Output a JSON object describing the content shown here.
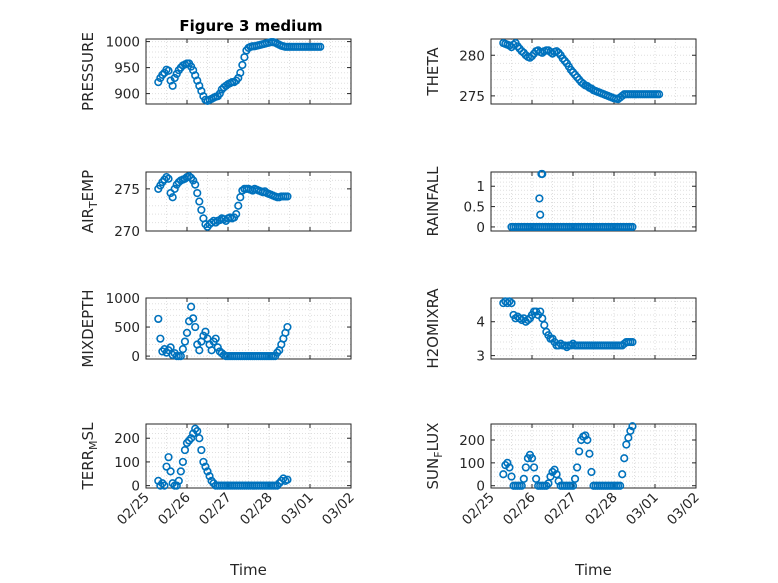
{
  "figure_title": "Figure 3 medium",
  "x_axis_label": "Time",
  "marker_color": "#0072bd",
  "date_ticks": [
    "02/25",
    "02/26",
    "02/27",
    "02/28",
    "03/01",
    "03/02"
  ],
  "chart_data": [
    {
      "type": "scatter",
      "title": "Figure 3 medium",
      "ylabel": "PRESSURE",
      "xlabel": "",
      "ylim": [
        880,
        1005
      ],
      "yticks": [
        900,
        950,
        1000
      ],
      "grid": true,
      "x": [
        0.3,
        0.35,
        0.4,
        0.45,
        0.5,
        0.55,
        0.6,
        0.65,
        0.7,
        0.75,
        0.8,
        0.85,
        0.9,
        0.95,
        1.0,
        1.05,
        1.1,
        1.15,
        1.2,
        1.25,
        1.3,
        1.35,
        1.4,
        1.45,
        1.5,
        1.55,
        1.6,
        1.65,
        1.7,
        1.75,
        1.8,
        1.85,
        1.9,
        1.95,
        2.0,
        2.05,
        2.1,
        2.15,
        2.2,
        2.25,
        2.3,
        2.35,
        2.4,
        2.45,
        2.5,
        2.55,
        2.6,
        2.65,
        2.7,
        2.75,
        2.8,
        2.85,
        2.9,
        2.95,
        3.0,
        3.05,
        3.1,
        3.15,
        3.2,
        3.25,
        3.3,
        3.35,
        3.4,
        3.45,
        3.5,
        3.55,
        3.6,
        3.65,
        3.7,
        3.75,
        3.8,
        3.85,
        3.9,
        3.95,
        4.0,
        4.05,
        4.1,
        4.15,
        4.2,
        4.25
      ],
      "y": [
        922,
        930,
        936,
        940,
        946,
        944,
        925,
        915,
        930,
        938,
        945,
        950,
        954,
        956,
        958,
        958,
        952,
        945,
        935,
        925,
        915,
        905,
        895,
        888,
        886,
        888,
        890,
        892,
        894,
        895,
        900,
        908,
        912,
        915,
        918,
        920,
        922,
        922,
        925,
        930,
        940,
        955,
        970,
        983,
        988,
        990,
        991,
        991,
        992,
        993,
        994,
        995,
        996,
        997,
        998,
        999,
        999,
        998,
        996,
        994,
        992,
        991,
        990,
        990,
        990,
        990,
        990,
        990,
        990,
        990,
        990,
        990,
        990,
        990,
        990,
        990,
        990,
        990,
        990,
        990
      ]
    },
    {
      "type": "scatter",
      "title": "",
      "ylabel": "THETA",
      "xlabel": "",
      "ylim": [
        274,
        282
      ],
      "yticks": [
        275,
        280
      ],
      "grid": true,
      "x": [
        0.3,
        0.35,
        0.4,
        0.45,
        0.5,
        0.55,
        0.6,
        0.65,
        0.7,
        0.75,
        0.8,
        0.85,
        0.9,
        0.95,
        1.0,
        1.05,
        1.1,
        1.15,
        1.2,
        1.25,
        1.3,
        1.35,
        1.4,
        1.45,
        1.5,
        1.55,
        1.6,
        1.65,
        1.7,
        1.75,
        1.8,
        1.85,
        1.9,
        1.95,
        2.0,
        2.05,
        2.1,
        2.15,
        2.2,
        2.25,
        2.3,
        2.35,
        2.4,
        2.45,
        2.5,
        2.55,
        2.6,
        2.65,
        2.7,
        2.75,
        2.8,
        2.85,
        2.9,
        2.95,
        3.0,
        3.05,
        3.1,
        3.15,
        3.2,
        3.25,
        3.3,
        3.35,
        3.4,
        3.45,
        3.5,
        3.55,
        3.6,
        3.65,
        3.7,
        3.75,
        3.8,
        3.85,
        3.9,
        3.95,
        4.0,
        4.05,
        4.1
      ],
      "y": [
        281.5,
        281.4,
        281.3,
        281.2,
        281.0,
        281.3,
        281.5,
        281.1,
        280.8,
        280.5,
        280.3,
        280.0,
        279.8,
        279.7,
        279.9,
        280.2,
        280.5,
        280.6,
        280.4,
        280.3,
        280.5,
        280.6,
        280.6,
        280.4,
        280.2,
        280.4,
        280.5,
        280.3,
        280.0,
        279.6,
        279.3,
        279.0,
        278.6,
        278.2,
        277.9,
        277.6,
        277.3,
        277.0,
        276.7,
        276.5,
        276.3,
        276.2,
        276.0,
        275.9,
        275.7,
        275.6,
        275.5,
        275.4,
        275.3,
        275.2,
        275.1,
        275.0,
        274.9,
        274.8,
        274.7,
        274.65,
        274.6,
        274.8,
        275.0,
        275.2,
        275.2,
        275.2,
        275.2,
        275.2,
        275.2,
        275.2,
        275.2,
        275.2,
        275.2,
        275.2,
        275.2,
        275.2,
        275.2,
        275.2,
        275.2,
        275.2,
        275.2
      ]
    },
    {
      "type": "scatter",
      "title": "",
      "ylabel": "AIR_TEMP",
      "xlabel": "",
      "ylim": [
        270,
        277
      ],
      "yticks": [
        270,
        275
      ],
      "grid": true,
      "x": [
        0.3,
        0.35,
        0.4,
        0.45,
        0.5,
        0.55,
        0.6,
        0.65,
        0.7,
        0.75,
        0.8,
        0.85,
        0.9,
        0.95,
        1.0,
        1.05,
        1.1,
        1.15,
        1.2,
        1.25,
        1.3,
        1.35,
        1.4,
        1.45,
        1.5,
        1.55,
        1.6,
        1.65,
        1.7,
        1.75,
        1.8,
        1.85,
        1.9,
        1.95,
        2.0,
        2.05,
        2.1,
        2.15,
        2.2,
        2.25,
        2.3,
        2.35,
        2.4,
        2.45,
        2.5,
        2.55,
        2.6,
        2.65,
        2.7,
        2.75,
        2.8,
        2.85,
        2.9,
        2.95,
        3.0,
        3.05,
        3.1,
        3.15,
        3.2,
        3.25,
        3.3,
        3.35,
        3.4,
        3.45
      ],
      "y": [
        275.0,
        275.4,
        275.8,
        276.1,
        276.4,
        276.2,
        274.5,
        274.0,
        275.0,
        275.5,
        275.8,
        276.0,
        276.1,
        276.2,
        276.4,
        276.5,
        276.3,
        276.0,
        275.5,
        274.5,
        273.5,
        272.5,
        271.5,
        270.8,
        270.5,
        270.8,
        271.0,
        271.2,
        271.0,
        271.2,
        271.3,
        271.5,
        271.4,
        271.2,
        271.5,
        271.6,
        271.5,
        271.6,
        272.0,
        273.0,
        274.0,
        274.8,
        275.0,
        275.0,
        275.0,
        274.9,
        274.8,
        275.0,
        274.9,
        274.8,
        274.7,
        274.6,
        274.7,
        274.5,
        274.4,
        274.3,
        274.2,
        274.1,
        274.0,
        274.0,
        274.1,
        274.1,
        274.1,
        274.1
      ]
    },
    {
      "type": "scatter",
      "title": "",
      "ylabel": "RAINFALL",
      "xlabel": "",
      "ylim": [
        -0.1,
        1.35
      ],
      "yticks": [
        0,
        0.5,
        1
      ],
      "grid": true,
      "x": [
        0.5,
        0.55,
        0.6,
        0.65,
        0.7,
        0.75,
        0.8,
        0.85,
        0.9,
        0.95,
        1.0,
        1.05,
        1.1,
        1.15,
        1.2,
        1.25,
        1.3,
        1.35,
        1.4,
        1.45,
        1.5,
        1.55,
        1.6,
        1.65,
        1.7,
        1.75,
        1.8,
        1.85,
        1.9,
        1.95,
        2.0,
        2.05,
        2.1,
        2.15,
        2.2,
        2.25,
        2.3,
        2.35,
        2.4,
        2.45,
        2.5,
        2.55,
        2.6,
        2.65,
        2.7,
        2.75,
        2.8,
        2.85,
        2.9,
        2.95,
        3.0,
        3.05,
        3.1,
        3.15,
        3.2,
        3.25,
        3.3,
        3.35,
        3.4,
        3.45,
        1.18,
        1.2,
        1.23,
        1.25
      ],
      "y": [
        0,
        0,
        0,
        0,
        0,
        0,
        0,
        0,
        0,
        0,
        0,
        0,
        0,
        0,
        0,
        0,
        0,
        0,
        0,
        0,
        0,
        0,
        0,
        0,
        0,
        0,
        0,
        0,
        0,
        0,
        0,
        0,
        0,
        0,
        0,
        0,
        0,
        0,
        0,
        0,
        0,
        0,
        0,
        0,
        0,
        0,
        0,
        0,
        0,
        0,
        0,
        0,
        0,
        0,
        0,
        0,
        0,
        0,
        0,
        0,
        0.7,
        0.3,
        1.3,
        1.3
      ]
    },
    {
      "type": "scatter",
      "title": "",
      "ylabel": "MIXDEPTH",
      "xlabel": "",
      "ylim": [
        -50,
        1000
      ],
      "yticks": [
        0,
        500,
        1000
      ],
      "grid": true,
      "x": [
        0.3,
        0.35,
        0.4,
        0.45,
        0.5,
        0.55,
        0.6,
        0.65,
        0.7,
        0.75,
        0.8,
        0.85,
        0.9,
        0.95,
        1.0,
        1.05,
        1.1,
        1.15,
        1.2,
        1.25,
        1.3,
        1.35,
        1.4,
        1.45,
        1.5,
        1.55,
        1.6,
        1.65,
        1.7,
        1.75,
        1.8,
        1.85,
        1.9,
        1.95,
        2.0,
        2.05,
        2.1,
        2.15,
        2.2,
        2.25,
        2.3,
        2.35,
        2.4,
        2.45,
        2.5,
        2.55,
        2.6,
        2.65,
        2.7,
        2.75,
        2.8,
        2.85,
        2.9,
        2.95,
        3.0,
        3.05,
        3.1,
        3.15,
        3.2,
        3.25,
        3.3,
        3.35,
        3.4,
        3.45
      ],
      "y": [
        640,
        300,
        80,
        120,
        60,
        100,
        150,
        20,
        50,
        0,
        0,
        0,
        120,
        250,
        400,
        600,
        850,
        650,
        500,
        200,
        100,
        250,
        350,
        420,
        300,
        200,
        100,
        250,
        300,
        150,
        80,
        50,
        20,
        0,
        0,
        0,
        0,
        0,
        0,
        0,
        0,
        0,
        0,
        0,
        0,
        0,
        0,
        0,
        0,
        0,
        0,
        0,
        0,
        0,
        0,
        0,
        0,
        0,
        60,
        100,
        200,
        300,
        400,
        500
      ]
    },
    {
      "type": "scatter",
      "title": "",
      "ylabel": "H2OMIXRA",
      "xlabel": "",
      "ylim": [
        2.9,
        4.7
      ],
      "yticks": [
        3,
        4
      ],
      "grid": true,
      "x": [
        0.3,
        0.35,
        0.4,
        0.45,
        0.5,
        0.55,
        0.6,
        0.65,
        0.7,
        0.75,
        0.8,
        0.85,
        0.9,
        0.95,
        1.0,
        1.05,
        1.1,
        1.15,
        1.2,
        1.25,
        1.3,
        1.35,
        1.4,
        1.45,
        1.5,
        1.55,
        1.6,
        1.65,
        1.7,
        1.75,
        1.8,
        1.85,
        1.9,
        1.95,
        2.0,
        2.05,
        2.1,
        2.15,
        2.2,
        2.25,
        2.3,
        2.35,
        2.4,
        2.45,
        2.5,
        2.55,
        2.6,
        2.65,
        2.7,
        2.75,
        2.8,
        2.85,
        2.9,
        2.95,
        3.0,
        3.05,
        3.1,
        3.15,
        3.2,
        3.25,
        3.3,
        3.35,
        3.4,
        3.45
      ],
      "y": [
        4.55,
        4.6,
        4.55,
        4.6,
        4.55,
        4.2,
        4.1,
        4.15,
        4.1,
        4.05,
        4.1,
        4.0,
        4.05,
        4.1,
        4.2,
        4.3,
        4.3,
        4.2,
        4.3,
        4.1,
        3.9,
        3.7,
        3.6,
        3.5,
        3.5,
        3.4,
        3.3,
        3.3,
        3.35,
        3.3,
        3.3,
        3.25,
        3.3,
        3.3,
        3.35,
        3.3,
        3.3,
        3.3,
        3.3,
        3.3,
        3.3,
        3.3,
        3.3,
        3.3,
        3.3,
        3.3,
        3.3,
        3.3,
        3.3,
        3.3,
        3.3,
        3.3,
        3.3,
        3.3,
        3.3,
        3.3,
        3.3,
        3.3,
        3.3,
        3.35,
        3.4,
        3.4,
        3.4,
        3.4
      ]
    },
    {
      "type": "scatter",
      "title": "",
      "ylabel": "TERR_MSL",
      "xlabel": "Time",
      "ylim": [
        -10,
        260
      ],
      "yticks": [
        0,
        100,
        200
      ],
      "grid": true,
      "x": [
        0.3,
        0.35,
        0.4,
        0.45,
        0.5,
        0.55,
        0.6,
        0.65,
        0.7,
        0.75,
        0.8,
        0.85,
        0.9,
        0.95,
        1.0,
        1.05,
        1.1,
        1.15,
        1.2,
        1.25,
        1.3,
        1.35,
        1.4,
        1.45,
        1.5,
        1.55,
        1.6,
        1.65,
        1.7,
        1.75,
        1.8,
        1.85,
        1.9,
        1.95,
        2.0,
        2.05,
        2.1,
        2.15,
        2.2,
        2.25,
        2.3,
        2.35,
        2.4,
        2.45,
        2.5,
        2.55,
        2.6,
        2.65,
        2.7,
        2.75,
        2.8,
        2.85,
        2.9,
        2.95,
        3.0,
        3.05,
        3.1,
        3.15,
        3.2,
        3.25,
        3.3,
        3.35,
        3.4,
        3.45
      ],
      "y": [
        20,
        0,
        10,
        0,
        80,
        120,
        60,
        10,
        0,
        0,
        20,
        60,
        100,
        150,
        180,
        190,
        200,
        220,
        240,
        230,
        200,
        150,
        100,
        80,
        60,
        40,
        20,
        10,
        0,
        0,
        0,
        0,
        0,
        0,
        0,
        0,
        0,
        0,
        0,
        0,
        0,
        0,
        0,
        0,
        0,
        0,
        0,
        0,
        0,
        0,
        0,
        0,
        0,
        0,
        0,
        0,
        0,
        0,
        0,
        10,
        20,
        30,
        20,
        25
      ]
    },
    {
      "type": "scatter",
      "title": "",
      "ylabel": "SUN_FLUX",
      "xlabel": "Time",
      "ylim": [
        -10,
        270
      ],
      "yticks": [
        0,
        100,
        200
      ],
      "grid": true,
      "x": [
        0.3,
        0.35,
        0.4,
        0.45,
        0.5,
        0.55,
        0.6,
        0.65,
        0.7,
        0.75,
        0.8,
        0.85,
        0.9,
        0.95,
        1.0,
        1.05,
        1.1,
        1.15,
        1.2,
        1.25,
        1.3,
        1.35,
        1.4,
        1.45,
        1.5,
        1.55,
        1.6,
        1.65,
        1.7,
        1.75,
        1.8,
        1.85,
        1.9,
        1.95,
        2.0,
        2.05,
        2.1,
        2.15,
        2.2,
        2.25,
        2.3,
        2.35,
        2.4,
        2.45,
        2.5,
        2.55,
        2.6,
        2.65,
        2.7,
        2.75,
        2.8,
        2.85,
        2.9,
        2.95,
        3.0,
        3.05,
        3.1,
        3.15,
        3.2,
        3.25,
        3.3,
        3.35,
        3.4,
        3.45
      ],
      "y": [
        50,
        90,
        100,
        80,
        40,
        0,
        0,
        0,
        0,
        0,
        30,
        80,
        120,
        135,
        120,
        80,
        30,
        0,
        0,
        0,
        0,
        0,
        10,
        40,
        60,
        70,
        50,
        20,
        0,
        0,
        0,
        0,
        0,
        0,
        0,
        30,
        80,
        150,
        200,
        215,
        220,
        200,
        140,
        60,
        0,
        0,
        0,
        0,
        0,
        0,
        0,
        0,
        0,
        0,
        0,
        0,
        0,
        0,
        50,
        120,
        180,
        210,
        240,
        260
      ]
    }
  ]
}
